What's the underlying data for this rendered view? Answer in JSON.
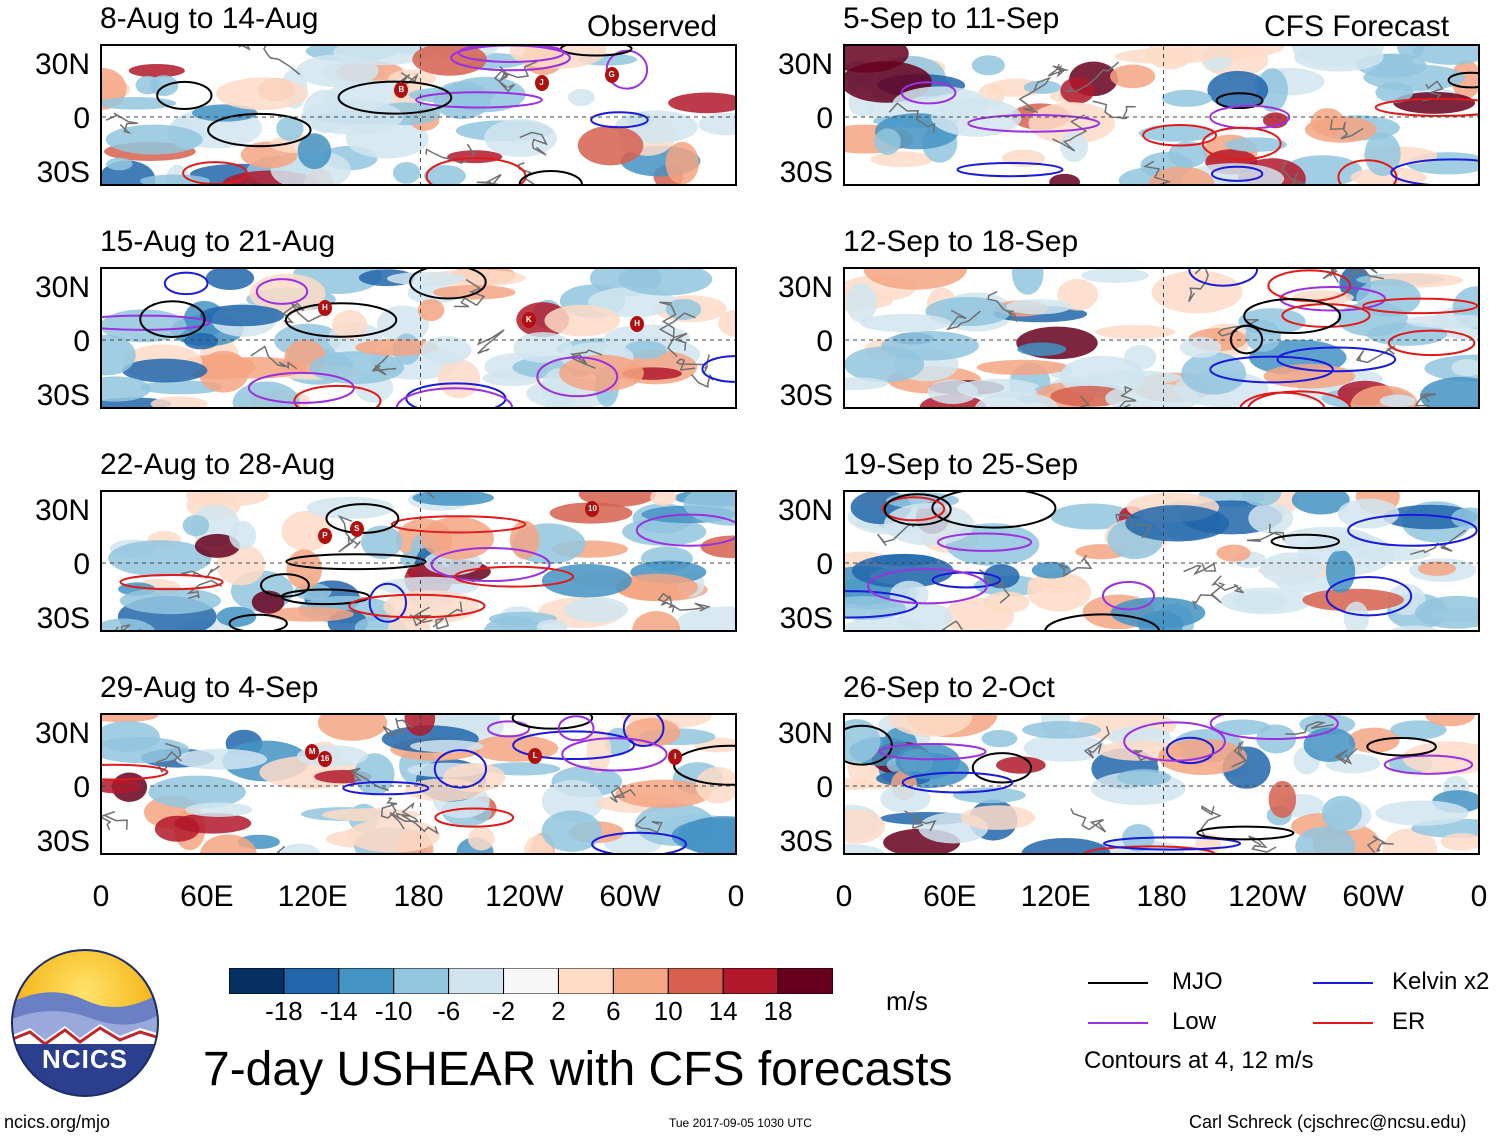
{
  "left_header": "Observed",
  "right_header": "CFS Forecast",
  "lat_labels": [
    "30N",
    "0",
    "30S"
  ],
  "lon_labels": [
    "0",
    "60E",
    "120E",
    "180",
    "120W",
    "60W",
    "0"
  ],
  "panels_left": [
    {
      "title": "8-Aug to 14-Aug",
      "storms": [
        "B",
        "J",
        "G"
      ]
    },
    {
      "title": "15-Aug to 21-Aug",
      "storms": [
        "H",
        "K",
        "H"
      ]
    },
    {
      "title": "22-Aug to 28-Aug",
      "storms": [
        "P",
        "S",
        "10"
      ]
    },
    {
      "title": "29-Aug to 4-Sep",
      "storms": [
        "M",
        "16",
        "L",
        "I"
      ]
    }
  ],
  "panels_right": [
    {
      "title": "5-Sep to 11-Sep"
    },
    {
      "title": "12-Sep to 18-Sep"
    },
    {
      "title": "19-Sep to 25-Sep"
    },
    {
      "title": "26-Sep to 2-Oct"
    }
  ],
  "colorbar": {
    "labels": [
      "-18",
      "-14",
      "-10",
      "-6",
      "-2",
      "2",
      "6",
      "10",
      "14",
      "18"
    ],
    "colors": [
      "#053061",
      "#2166ac",
      "#4393c3",
      "#92c5de",
      "#d1e5f0",
      "#f7f7f7",
      "#fddbc7",
      "#f4a582",
      "#d6604d",
      "#b2182b",
      "#67001f"
    ],
    "unit": "m/s"
  },
  "legend": {
    "mjo": {
      "label": "MJO",
      "color": "#000000"
    },
    "kelvin": {
      "label": "Kelvin x2",
      "color": "#1a1adb"
    },
    "low": {
      "label": "Low",
      "color": "#9b30e0"
    },
    "er": {
      "label": "ER",
      "color": "#e01a1a"
    },
    "contours_note": "Contours at 4, 12 m/s"
  },
  "logo": {
    "text": "NCICS"
  },
  "main_title": "7-day USHEAR with CFS forecasts",
  "footer": {
    "url": "ncics.org/mjo",
    "timestamp": "Tue 2017-09-05 1030 UTC",
    "credit": "Carl Schreck (cjschrec@ncsu.edu)"
  }
}
